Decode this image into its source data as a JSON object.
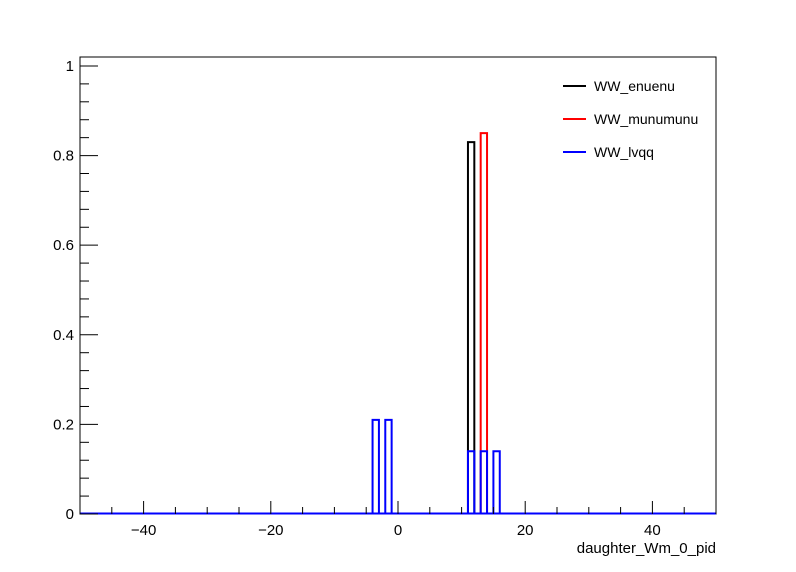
{
  "chart_data": {
    "type": "histogram",
    "title": "",
    "xlabel": "daughter_Wm_0_pid",
    "ylabel": "",
    "xlim": [
      -50,
      50
    ],
    "ylim": [
      0,
      1.02
    ],
    "xticks": [
      -40,
      -20,
      0,
      20,
      40
    ],
    "xtick_labels": [
      "−40",
      "−20",
      "0",
      "20",
      "40"
    ],
    "yticks": [
      0,
      0.2,
      0.4,
      0.6,
      0.8,
      1
    ],
    "ytick_labels": [
      "0",
      "0.2",
      "0.4",
      "0.6",
      "0.8",
      "1"
    ],
    "bin_width": 1,
    "grid": false,
    "legend_position": "top-right",
    "series": [
      {
        "name": "WW_enuenu",
        "color": "#000000",
        "bins": [
          {
            "x": 11,
            "y": 0.83
          }
        ]
      },
      {
        "name": "WW_munumunu",
        "color": "#ff0000",
        "bins": [
          {
            "x": 13,
            "y": 0.85
          }
        ]
      },
      {
        "name": "WW_lvqq",
        "color": "#0000ff",
        "bins": [
          {
            "x": -4,
            "y": 0.21
          },
          {
            "x": -2,
            "y": 0.21
          },
          {
            "x": 11,
            "y": 0.14
          },
          {
            "x": 13,
            "y": 0.14
          },
          {
            "x": 15,
            "y": 0.14
          }
        ]
      }
    ]
  }
}
